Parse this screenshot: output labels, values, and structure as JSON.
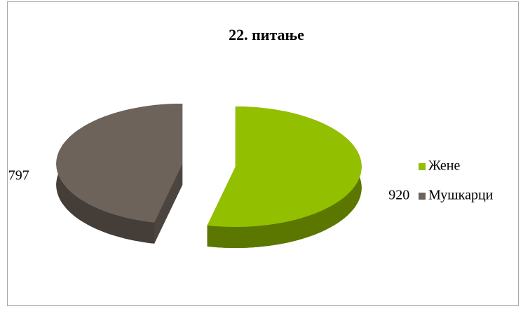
{
  "chart_data": {
    "type": "pie3d",
    "title": "22. питање",
    "categories": [
      "Жене",
      "Мушкарци"
    ],
    "values": [
      920,
      797
    ],
    "colors": [
      "#92c000",
      "#6d635a"
    ],
    "legend": "right"
  }
}
